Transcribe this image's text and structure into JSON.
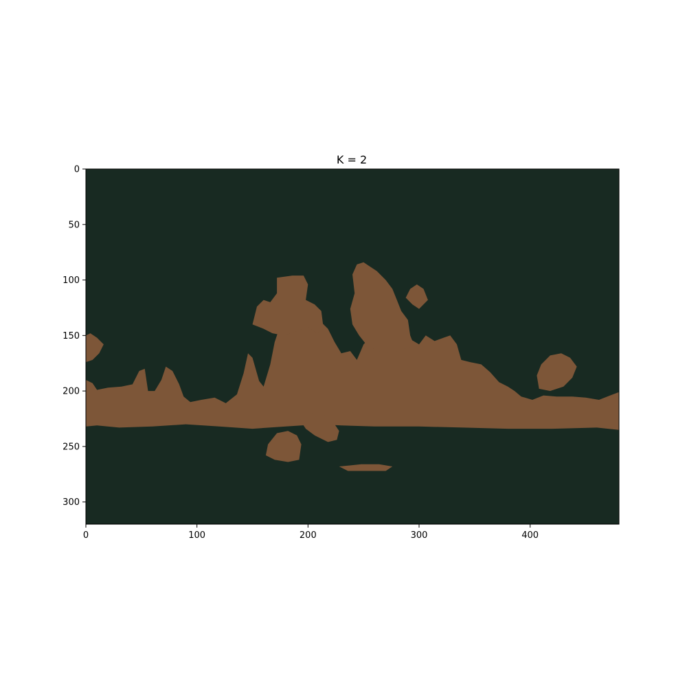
{
  "chart_data": {
    "type": "heatmap",
    "title": "K = 2",
    "xlabel": "",
    "ylabel": "",
    "xlim": [
      0,
      480
    ],
    "ylim": [
      320,
      0
    ],
    "x_ticks": [
      0,
      100,
      200,
      300,
      400
    ],
    "y_ticks": [
      0,
      50,
      100,
      150,
      200,
      250,
      300
    ],
    "grid": false,
    "legend": "none",
    "colors": {
      "background_cluster": "#182a22",
      "foreground_cluster": "#7d5638"
    },
    "regions": [
      {
        "cluster": 1,
        "name": "main-band",
        "points": [
          [
            0,
            232
          ],
          [
            0,
            190
          ],
          [
            6,
            193
          ],
          [
            10,
            199
          ],
          [
            20,
            197
          ],
          [
            32,
            196
          ],
          [
            42,
            194
          ],
          [
            48,
            182
          ],
          [
            53,
            180
          ],
          [
            56,
            200
          ],
          [
            62,
            200
          ],
          [
            68,
            190
          ],
          [
            72,
            178
          ],
          [
            78,
            182
          ],
          [
            84,
            194
          ],
          [
            88,
            205
          ],
          [
            94,
            210
          ],
          [
            104,
            208
          ],
          [
            116,
            206
          ],
          [
            126,
            211
          ],
          [
            136,
            203
          ],
          [
            142,
            184
          ],
          [
            146,
            166
          ],
          [
            150,
            170
          ],
          [
            156,
            191
          ],
          [
            160,
            196
          ],
          [
            166,
            176
          ],
          [
            170,
            156
          ],
          [
            176,
            138
          ],
          [
            186,
            132
          ],
          [
            198,
            128
          ],
          [
            210,
            136
          ],
          [
            218,
            144
          ],
          [
            224,
            156
          ],
          [
            230,
            166
          ],
          [
            238,
            164
          ],
          [
            244,
            172
          ],
          [
            250,
            158
          ],
          [
            258,
            150
          ],
          [
            264,
            142
          ],
          [
            272,
            140
          ],
          [
            282,
            145
          ],
          [
            290,
            152
          ],
          [
            300,
            158
          ],
          [
            306,
            150
          ],
          [
            314,
            155
          ],
          [
            322,
            152
          ],
          [
            328,
            150
          ],
          [
            334,
            158
          ],
          [
            338,
            172
          ],
          [
            346,
            174
          ],
          [
            356,
            176
          ],
          [
            364,
            183
          ],
          [
            372,
            192
          ],
          [
            380,
            196
          ],
          [
            386,
            200
          ],
          [
            392,
            205
          ],
          [
            402,
            208
          ],
          [
            412,
            204
          ],
          [
            424,
            205
          ],
          [
            438,
            205
          ],
          [
            450,
            206
          ],
          [
            462,
            208
          ],
          [
            472,
            204
          ],
          [
            480,
            201
          ],
          [
            480,
            235
          ],
          [
            460,
            233
          ],
          [
            420,
            234
          ],
          [
            380,
            234
          ],
          [
            340,
            233
          ],
          [
            300,
            232
          ],
          [
            260,
            232
          ],
          [
            230,
            231
          ],
          [
            210,
            230
          ],
          [
            180,
            232
          ],
          [
            150,
            234
          ],
          [
            120,
            232
          ],
          [
            90,
            230
          ],
          [
            60,
            232
          ],
          [
            30,
            233
          ],
          [
            10,
            231
          ]
        ]
      },
      {
        "cluster": 1,
        "name": "upper-left-arm",
        "points": [
          [
            150,
            140
          ],
          [
            154,
            124
          ],
          [
            160,
            118
          ],
          [
            166,
            120
          ],
          [
            172,
            112
          ],
          [
            172,
            98
          ],
          [
            186,
            96
          ],
          [
            196,
            96
          ],
          [
            200,
            104
          ],
          [
            198,
            118
          ],
          [
            206,
            122
          ],
          [
            212,
            128
          ],
          [
            214,
            144
          ],
          [
            208,
            148
          ],
          [
            200,
            142
          ],
          [
            190,
            146
          ],
          [
            178,
            150
          ],
          [
            168,
            148
          ],
          [
            160,
            144
          ]
        ]
      },
      {
        "cluster": 1,
        "name": "upper-center-peak",
        "points": [
          [
            240,
            95
          ],
          [
            244,
            86
          ],
          [
            250,
            84
          ],
          [
            256,
            88
          ],
          [
            262,
            92
          ],
          [
            270,
            100
          ],
          [
            276,
            108
          ],
          [
            280,
            118
          ],
          [
            284,
            128
          ],
          [
            290,
            136
          ],
          [
            292,
            150
          ],
          [
            296,
            160
          ],
          [
            286,
            162
          ],
          [
            274,
            166
          ],
          [
            264,
            164
          ],
          [
            254,
            160
          ],
          [
            246,
            150
          ],
          [
            240,
            140
          ],
          [
            238,
            126
          ],
          [
            242,
            112
          ]
        ]
      },
      {
        "cluster": 1,
        "name": "peak-right-arm",
        "points": [
          [
            292,
            108
          ],
          [
            298,
            104
          ],
          [
            304,
            108
          ],
          [
            308,
            118
          ],
          [
            300,
            126
          ],
          [
            294,
            122
          ],
          [
            288,
            116
          ]
        ]
      },
      {
        "cluster": 1,
        "name": "right-patch",
        "points": [
          [
            406,
            186
          ],
          [
            410,
            176
          ],
          [
            418,
            168
          ],
          [
            428,
            166
          ],
          [
            436,
            170
          ],
          [
            442,
            178
          ],
          [
            438,
            188
          ],
          [
            430,
            196
          ],
          [
            418,
            200
          ],
          [
            408,
            198
          ]
        ]
      },
      {
        "cluster": 1,
        "name": "lower-center-extension",
        "points": [
          [
            192,
            222
          ],
          [
            204,
            220
          ],
          [
            216,
            222
          ],
          [
            224,
            230
          ],
          [
            228,
            236
          ],
          [
            226,
            244
          ],
          [
            218,
            246
          ],
          [
            206,
            240
          ],
          [
            198,
            234
          ],
          [
            194,
            228
          ]
        ]
      },
      {
        "cluster": 1,
        "name": "lower-left-drip",
        "points": [
          [
            172,
            238
          ],
          [
            182,
            236
          ],
          [
            190,
            240
          ],
          [
            194,
            248
          ],
          [
            192,
            262
          ],
          [
            182,
            264
          ],
          [
            170,
            262
          ],
          [
            162,
            258
          ],
          [
            164,
            248
          ]
        ]
      },
      {
        "cluster": 1,
        "name": "left-edge-blob",
        "points": [
          [
            0,
            150
          ],
          [
            4,
            148
          ],
          [
            10,
            152
          ],
          [
            16,
            158
          ],
          [
            12,
            166
          ],
          [
            6,
            172
          ],
          [
            0,
            174
          ]
        ]
      },
      {
        "cluster": 1,
        "name": "bottom-fleck",
        "points": [
          [
            228,
            268
          ],
          [
            248,
            266
          ],
          [
            264,
            266
          ],
          [
            276,
            268
          ],
          [
            270,
            272
          ],
          [
            252,
            272
          ],
          [
            236,
            272
          ]
        ]
      }
    ]
  }
}
